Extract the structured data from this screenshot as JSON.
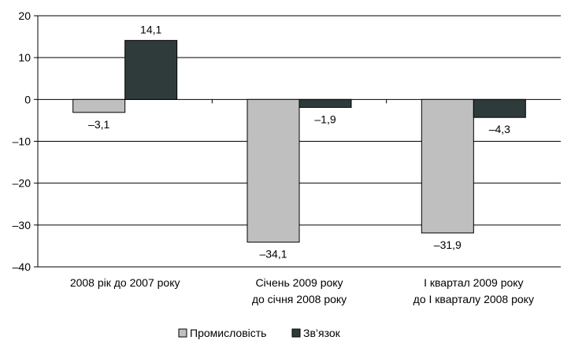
{
  "chart_data": {
    "type": "bar",
    "categories": [
      [
        "2008 рік до 2007 року"
      ],
      [
        "Січень 2009 року",
        "до січня 2008 року"
      ],
      [
        "І квартал 2009 року",
        "до І кварталу 2008 року"
      ]
    ],
    "series": [
      {
        "name": "Промисловість",
        "values": [
          -3.1,
          -34.1,
          -31.9
        ],
        "labels": [
          "–3,1",
          "–34,1",
          "–31,9"
        ],
        "color": "#bfbfbf"
      },
      {
        "name": "Зв’язок",
        "values": [
          14.1,
          -1.9,
          -4.3
        ],
        "labels": [
          "14,1",
          "–1,9",
          "–4,3"
        ],
        "color": "#2f3b3b"
      }
    ],
    "ylim": [
      -40,
      20
    ],
    "yticks": [
      20,
      10,
      0,
      -10,
      -20,
      -30,
      -40
    ],
    "ytick_labels": [
      "20",
      "10",
      "0",
      "–10",
      "–20",
      "–30",
      "–40"
    ],
    "grid": true,
    "legend_position": "bottom"
  }
}
